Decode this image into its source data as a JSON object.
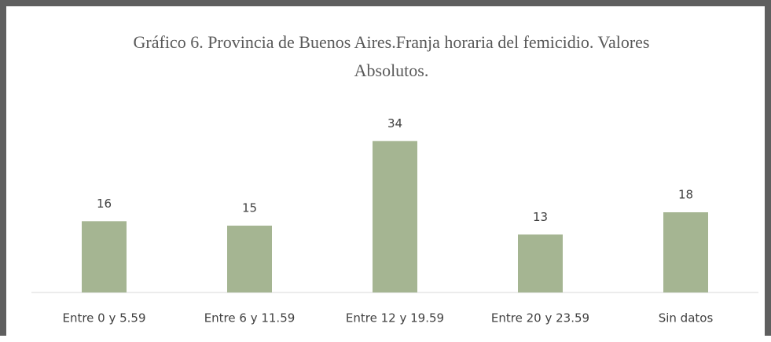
{
  "chart_data": {
    "type": "bar",
    "title": "Gráfico 6. Provincia de Buenos Aires.Franja horaria del femicidio. Valores Absolutos.",
    "categories": [
      "Entre 0 y 5.59",
      "Entre 6 y 11.59",
      "Entre 12 y 19.59",
      "Entre 20 y 23.59",
      "Sin datos"
    ],
    "values": [
      16,
      15,
      34,
      13,
      18
    ],
    "color": "#a5b592",
    "ylim": [
      0,
      36
    ]
  }
}
